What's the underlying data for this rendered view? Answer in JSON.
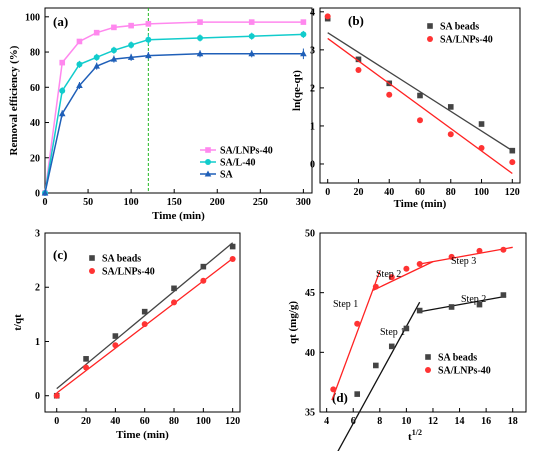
{
  "colors": {
    "SA/LNPs-40": "#ff88ee",
    "SA/L-40": "#11cccc",
    "SA": "#1f5fb8",
    "SA beads": "#444444",
    "SA/LNPs-40 red": "#ff3333",
    "fitline_gray": "#444444",
    "fitline_red": "#ff2222",
    "fitline_black": "#111111",
    "marker_line": "#22bb22"
  },
  "chart_data": [
    {
      "panel_label": "(a)",
      "type": "line",
      "xlabel": "Time (min)",
      "ylabel": "Removal efficiency (%)",
      "xlim": [
        0,
        310
      ],
      "ylim": [
        0,
        105
      ],
      "xticks": [
        "0",
        "50",
        "100",
        "150",
        "200",
        "250",
        "300"
      ],
      "yticks": [
        "0",
        "20",
        "40",
        "60",
        "80",
        "100"
      ],
      "marker_x": 120,
      "legend_position": "lower-right",
      "series": [
        {
          "name": "SA/LNPs-40",
          "x": [
            0,
            20,
            40,
            60,
            80,
            100,
            120,
            180,
            240,
            300
          ],
          "y": [
            0,
            74,
            86,
            91,
            94,
            95,
            96,
            97,
            97,
            97
          ],
          "err": [
            0,
            1,
            1,
            1,
            1,
            1,
            1,
            1,
            1,
            1
          ]
        },
        {
          "name": "SA/L-40",
          "x": [
            0,
            20,
            40,
            60,
            80,
            100,
            120,
            180,
            240,
            300
          ],
          "y": [
            0,
            58,
            73,
            77,
            81,
            84,
            87,
            88,
            89,
            90
          ],
          "err": [
            0,
            2,
            2,
            2,
            2,
            2,
            3,
            2,
            2,
            2
          ]
        },
        {
          "name": "SA",
          "x": [
            0,
            20,
            40,
            60,
            80,
            100,
            120,
            180,
            240,
            300
          ],
          "y": [
            0,
            45,
            61,
            72,
            76,
            77,
            78,
            79,
            79,
            79
          ],
          "err": [
            0,
            2,
            2,
            2,
            2,
            2,
            2,
            2,
            2,
            3
          ]
        }
      ]
    },
    {
      "panel_label": "(b)",
      "type": "scatter",
      "xlabel": "Time (min)",
      "ylabel": "ln(qe-qt)",
      "xlim": [
        -5,
        125
      ],
      "ylim": [
        -0.5,
        4.1
      ],
      "xticks": [
        "0",
        "20",
        "40",
        "60",
        "80",
        "100",
        "120"
      ],
      "yticks": [
        "0",
        "1",
        "2",
        "3",
        "4"
      ],
      "legend_position": "top-right",
      "series": [
        {
          "name": "SA beads",
          "x": [
            0,
            20,
            40,
            60,
            80,
            100,
            120
          ],
          "y": [
            3.82,
            2.75,
            2.12,
            1.8,
            1.5,
            1.05,
            0.35
          ],
          "fit": [
            3.45,
            0.35
          ]
        },
        {
          "name": "SA/LNPs-40",
          "x": [
            0,
            20,
            40,
            60,
            80,
            100,
            120
          ],
          "y": [
            3.88,
            2.47,
            1.82,
            1.15,
            0.78,
            0.42,
            0.05
          ],
          "fit": [
            3.3,
            -0.25
          ]
        }
      ]
    },
    {
      "panel_label": "(c)",
      "type": "scatter",
      "xlabel": "Time (min)",
      "ylabel": "t/qt",
      "xlim": [
        -8,
        125
      ],
      "ylim": [
        -0.3,
        3
      ],
      "xticks": [
        "0",
        "20",
        "40",
        "60",
        "80",
        "100",
        "120"
      ],
      "yticks": [
        "0",
        "1",
        "2",
        "3"
      ],
      "legend_position": "top-left",
      "series": [
        {
          "name": "SA beads",
          "x": [
            0,
            20,
            40,
            60,
            80,
            100,
            120
          ],
          "y": [
            0,
            0.68,
            1.1,
            1.55,
            1.98,
            2.38,
            2.75
          ],
          "fit": [
            0.13,
            2.82
          ]
        },
        {
          "name": "SA/LNPs-40",
          "x": [
            0,
            20,
            40,
            60,
            80,
            100,
            120
          ],
          "y": [
            0,
            0.52,
            0.93,
            1.32,
            1.72,
            2.12,
            2.52
          ],
          "fit": [
            0.05,
            2.53
          ]
        }
      ]
    },
    {
      "panel_label": "(d)",
      "type": "scatter",
      "xlabel": "t1/2",
      "ylabel": "qt (mg/g)",
      "xlim": [
        3.5,
        19
      ],
      "ylim": [
        35,
        50
      ],
      "xticks": [
        "4",
        "6",
        "8",
        "10",
        "12",
        "14",
        "16",
        "18"
      ],
      "yticks": [
        "35",
        "40",
        "45",
        "50"
      ],
      "legend_position": "lower-right",
      "annotations": [
        "Step 1",
        "Step 2",
        "Step 3",
        "Step 1",
        "Step 2"
      ],
      "series": [
        {
          "name": "SA beads",
          "x": [
            6.3,
            7.7,
            8.9,
            10,
            11,
            13.4,
            15.5,
            17.3
          ],
          "y": [
            36.5,
            38.9,
            40.5,
            42.0,
            43.5,
            43.8,
            44.0,
            44.8
          ],
          "fits": [
            {
              "x": [
                4.5,
                11
              ],
              "y": [
                31,
                44.2
              ]
            },
            {
              "x": [
                11,
                17.5
              ],
              "y": [
                43.4,
                44.7
              ]
            }
          ]
        },
        {
          "name": "SA/LNPs-40",
          "x": [
            4.5,
            6.3,
            7.7,
            8.9,
            10,
            11,
            13.4,
            15.5,
            17.3
          ],
          "y": [
            36.9,
            42.4,
            45.5,
            46.3,
            47.0,
            47.4,
            48.0,
            48.5,
            48.6
          ],
          "fits": [
            {
              "x": [
                4.4,
                8
              ],
              "y": [
                36,
                46.8
              ]
            },
            {
              "x": [
                7.5,
                12
              ],
              "y": [
                45.2,
                47.6
              ]
            },
            {
              "x": [
                11,
                18
              ],
              "y": [
                47.4,
                48.8
              ]
            }
          ]
        }
      ]
    }
  ]
}
